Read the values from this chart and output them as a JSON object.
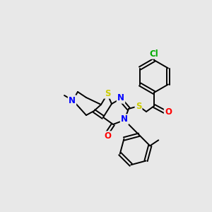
{
  "background_color": "#e8e8e8",
  "bond_color": "#000000",
  "atom_colors": {
    "S": "#cccc00",
    "N": "#0000ff",
    "O": "#ff0000",
    "Cl": "#00aa00",
    "C": "#000000"
  },
  "figsize": [
    3.0,
    3.0
  ],
  "dpi": 100
}
